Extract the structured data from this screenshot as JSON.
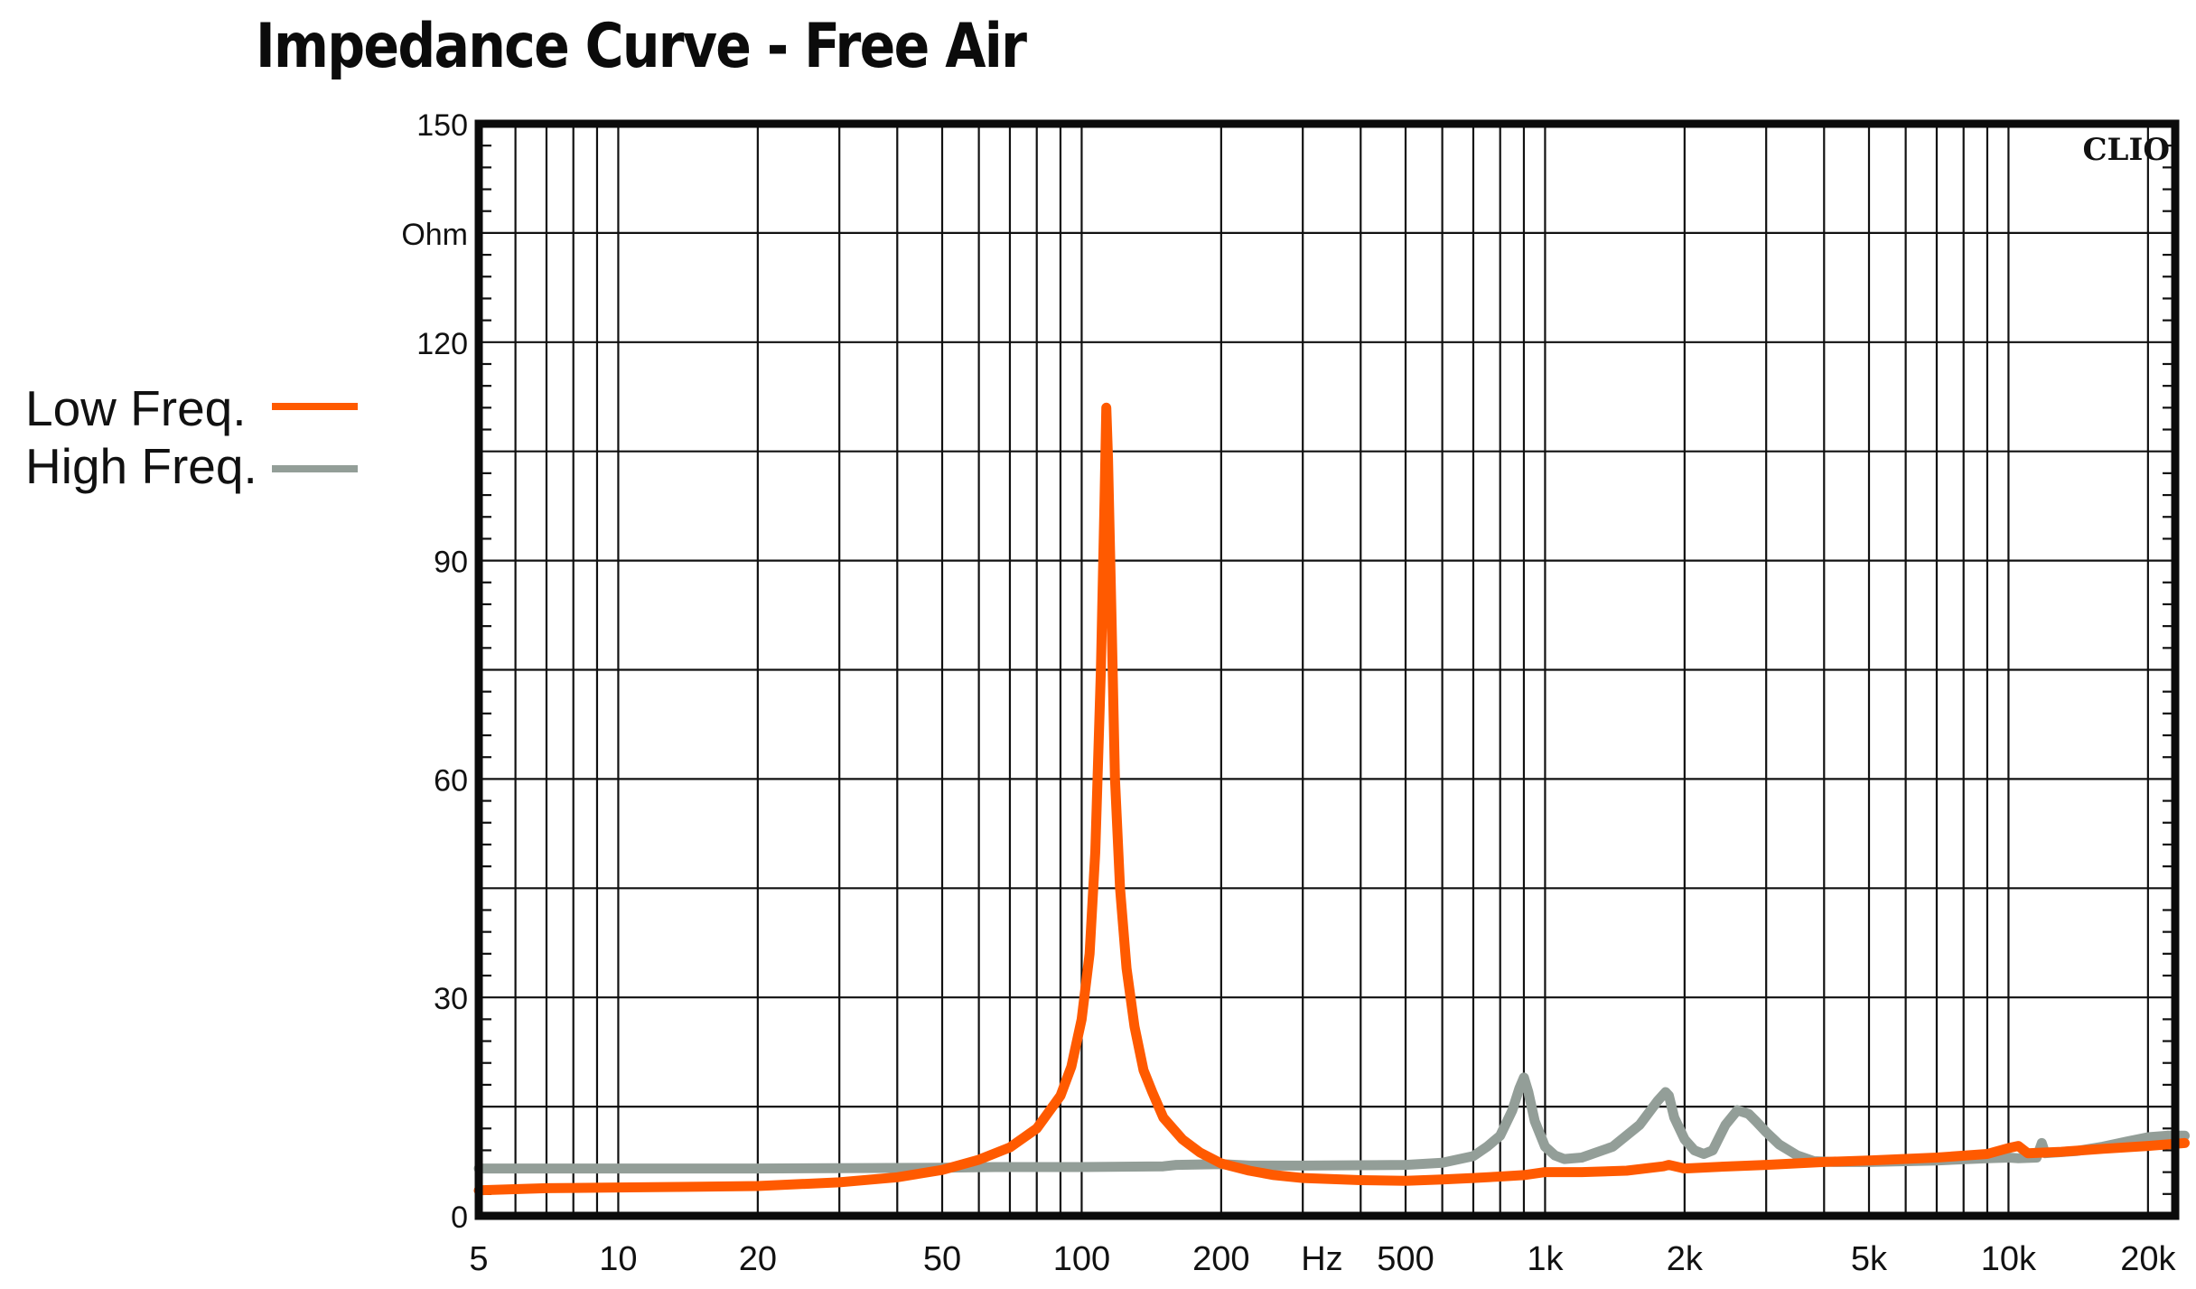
{
  "title": "Impedance Curve - Free Air",
  "watermark": "CLIO",
  "legend": [
    {
      "label": "Low Freq.",
      "color": "#ff5a00"
    },
    {
      "label": "High Freq.",
      "color": "#939e98"
    }
  ],
  "chart_data": {
    "type": "line",
    "title": "Impedance Curve - Free Air",
    "xlabel": "Hz",
    "ylabel": "Ohm",
    "xscale": "log",
    "xlim": [
      5,
      24000
    ],
    "ylim": [
      0,
      150
    ],
    "grid": true,
    "legend_position": "left",
    "y_ticks": [
      0,
      30,
      60,
      90,
      120,
      150
    ],
    "y_unit_label_at": 135,
    "x_ticks": [
      {
        "value": 5,
        "label": "5"
      },
      {
        "value": 10,
        "label": "10"
      },
      {
        "value": 20,
        "label": "20"
      },
      {
        "value": 50,
        "label": "50"
      },
      {
        "value": 100,
        "label": "100"
      },
      {
        "value": 200,
        "label": "200"
      },
      {
        "value": 330,
        "label": "Hz"
      },
      {
        "value": 500,
        "label": "500"
      },
      {
        "value": 1000,
        "label": "1k"
      },
      {
        "value": 2000,
        "label": "2k"
      },
      {
        "value": 5000,
        "label": "5k"
      },
      {
        "value": 10000,
        "label": "10k"
      },
      {
        "value": 20000,
        "label": "20k"
      }
    ],
    "series": [
      {
        "name": "Low Freq.",
        "color": "#ff5a00",
        "x": [
          5,
          7,
          10,
          15,
          20,
          30,
          40,
          50,
          60,
          70,
          80,
          90,
          95,
          100,
          104,
          107,
          110,
          112,
          113,
          114,
          116,
          118,
          121,
          125,
          130,
          136,
          142,
          150,
          165,
          180,
          200,
          230,
          260,
          300,
          400,
          500,
          600,
          700,
          800,
          900,
          1000,
          1200,
          1500,
          1800,
          1850,
          2000,
          2500,
          3000,
          4000,
          5000,
          7000,
          9000,
          10000,
          10500,
          11000,
          13000,
          16000,
          20000,
          24000
        ],
        "y": [
          3.5,
          3.8,
          3.9,
          4.0,
          4.1,
          4.6,
          5.3,
          6.3,
          7.7,
          9.4,
          12.0,
          16.5,
          20.5,
          27.0,
          36.0,
          50.0,
          75.0,
          98.0,
          111.0,
          104.0,
          82.0,
          60.0,
          45.0,
          34.0,
          26.0,
          20.0,
          17.0,
          13.5,
          10.5,
          8.7,
          7.2,
          6.2,
          5.6,
          5.2,
          4.9,
          4.8,
          5.0,
          5.2,
          5.4,
          5.6,
          6.0,
          6.0,
          6.2,
          6.8,
          7.0,
          6.5,
          6.8,
          7.0,
          7.4,
          7.6,
          8.0,
          8.5,
          9.3,
          9.6,
          8.6,
          8.8,
          9.2,
          9.6,
          10.0
        ]
      },
      {
        "name": "High Freq.",
        "color": "#939e98",
        "x": [
          5,
          10,
          20,
          50,
          65,
          100,
          150,
          160,
          200,
          230,
          300,
          500,
          600,
          700,
          750,
          800,
          850,
          880,
          900,
          920,
          950,
          1000,
          1050,
          1100,
          1200,
          1400,
          1600,
          1750,
          1820,
          1850,
          1900,
          2000,
          2100,
          2200,
          2300,
          2450,
          2600,
          2750,
          2850,
          3000,
          3200,
          3500,
          3800,
          4200,
          5000,
          7000,
          9000,
          10000,
          10500,
          11500,
          11800,
          12000,
          14000,
          16000,
          18000,
          20000,
          22000,
          24000
        ],
        "y": [
          6.5,
          6.5,
          6.5,
          6.6,
          6.7,
          6.7,
          6.8,
          7.0,
          7.1,
          6.9,
          6.9,
          7.0,
          7.3,
          8.2,
          9.5,
          11.0,
          14.5,
          17.5,
          19.0,
          17.0,
          13.0,
          9.5,
          8.3,
          7.8,
          8.0,
          9.5,
          12.5,
          15.8,
          17.0,
          16.5,
          13.5,
          10.5,
          9.0,
          8.5,
          9.0,
          12.5,
          14.5,
          14.0,
          13.0,
          11.5,
          9.8,
          8.3,
          7.5,
          7.4,
          7.4,
          7.6,
          7.9,
          8.0,
          7.9,
          8.0,
          10.0,
          8.6,
          8.9,
          9.5,
          10.2,
          10.8,
          11.0,
          11.0
        ]
      }
    ]
  }
}
